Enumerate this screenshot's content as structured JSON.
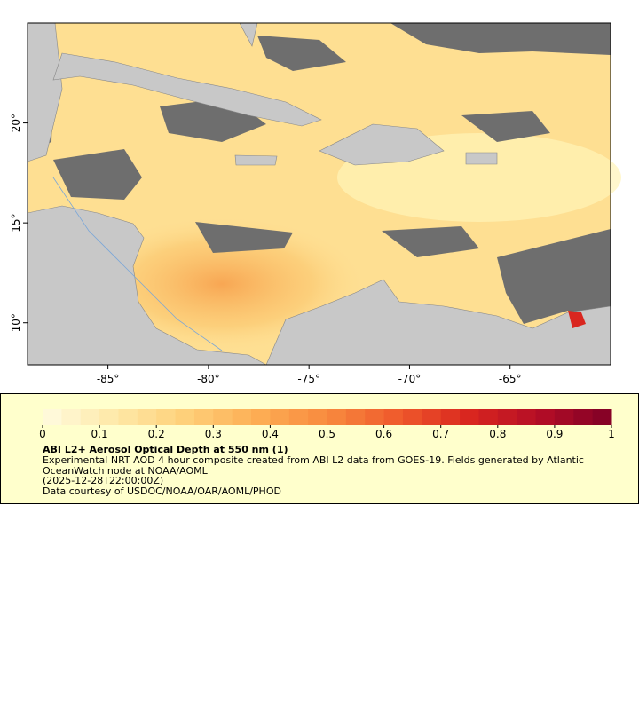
{
  "map": {
    "xlim": [
      -89,
      -60
    ],
    "ylim": [
      7.9,
      25
    ],
    "xticks": [
      {
        "value": -85,
        "label": "-85°"
      },
      {
        "value": -80,
        "label": "-80°"
      },
      {
        "value": -75,
        "label": "-75°"
      },
      {
        "value": -70,
        "label": "-70°"
      },
      {
        "value": -65,
        "label": "-65°"
      }
    ],
    "yticks": [
      {
        "value": 10,
        "label": "10°"
      },
      {
        "value": 15,
        "label": "15°"
      },
      {
        "value": 20,
        "label": "20°"
      }
    ]
  },
  "legend": {
    "colorbar": {
      "range": [
        0,
        1
      ],
      "ticks": [
        0,
        0.1,
        0.2,
        0.3,
        0.4,
        0.5,
        0.6,
        0.7,
        0.8,
        0.9,
        1
      ],
      "steps": 30,
      "colors": [
        "#fffbe0",
        "#fee9a8",
        "#fed07a",
        "#fdae55",
        "#f88a3e",
        "#ef5a2c",
        "#d9261f",
        "#b30d26",
        "#800026"
      ]
    },
    "title": "ABI L2+ Aerosol Optical Depth at 550 nm (1)",
    "lines": [
      "Experimental NRT AOD 4 hour composite created from ABI L2 data from GOES-19. Fields generated by Atlantic",
      "OceanWatch node at NOAA/AOML",
      "(2025-12-28T22:00:00Z)",
      "Data courtesy of USDOC/NOAA/OAR/AOML/PHOD"
    ]
  }
}
